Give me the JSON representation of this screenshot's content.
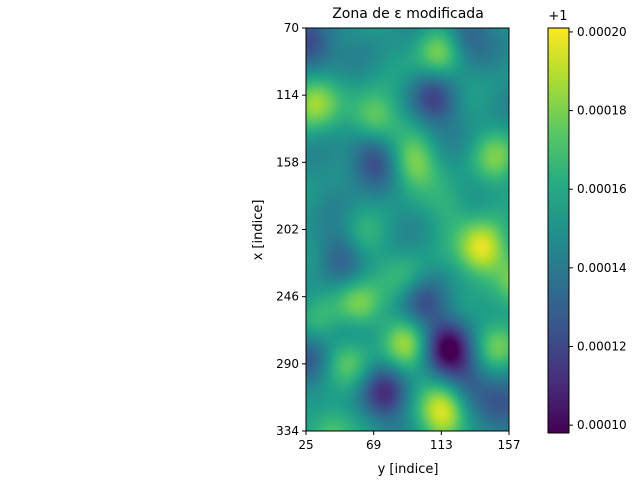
{
  "chart_data": {
    "type": "heatmap",
    "title": "Zona de ε modificada",
    "xlabel": "y [indice]",
    "ylabel": "x [indice]",
    "x_ticks": [
      25,
      69,
      113,
      157
    ],
    "y_ticks": [
      70,
      114,
      158,
      202,
      246,
      290,
      334
    ],
    "x_range": [
      25,
      157
    ],
    "y_range": [
      70,
      334
    ],
    "y_inverted": true,
    "colormap": "viridis",
    "colorbar": {
      "offset_label": "+1",
      "ticks": [
        "0.00010",
        "0.00012",
        "0.00014",
        "0.00016",
        "0.00018",
        "0.00020"
      ],
      "tick_values": [
        0.0001,
        0.00012,
        0.00014,
        0.00016,
        0.00018,
        0.0002
      ],
      "range": [
        9.8e-05,
        0.000201
      ]
    },
    "features": [
      {
        "x": 140,
        "y": 215,
        "value": 0.000201
      },
      {
        "x": 115,
        "y": 322,
        "value": 0.000199
      },
      {
        "x": 59,
        "y": 253,
        "value": 0.000186
      },
      {
        "x": 112,
        "y": 86,
        "value": 0.000184
      },
      {
        "x": 70,
        "y": 128,
        "value": 0.000183
      },
      {
        "x": 29,
        "y": 118,
        "value": 0.000188
      },
      {
        "x": 95,
        "y": 158,
        "value": 0.000182
      },
      {
        "x": 90,
        "y": 278,
        "value": 0.000183
      },
      {
        "x": 150,
        "y": 278,
        "value": 0.000179
      },
      {
        "x": 52,
        "y": 285,
        "value": 0.000178
      },
      {
        "x": 162,
        "y": 238,
        "value": 0.000174
      },
      {
        "x": 150,
        "y": 155,
        "value": 0.000176
      },
      {
        "x": 40,
        "y": 335,
        "value": 0.000175
      },
      {
        "x": 92,
        "y": 235,
        "value": 0.000168
      },
      {
        "x": 60,
        "y": 210,
        "value": 0.000166
      },
      {
        "x": 30,
        "y": 262,
        "value": 0.000166
      },
      {
        "x": 120,
        "y": 188,
        "value": 0.000164
      },
      {
        "x": 118,
        "y": 280,
        "value": 0.0001
      },
      {
        "x": 76,
        "y": 310,
        "value": 0.000115
      },
      {
        "x": 28,
        "y": 80,
        "value": 0.000118
      },
      {
        "x": 68,
        "y": 156,
        "value": 0.000118
      },
      {
        "x": 108,
        "y": 117,
        "value": 0.00012
      },
      {
        "x": 100,
        "y": 250,
        "value": 0.000122
      },
      {
        "x": 152,
        "y": 320,
        "value": 0.000124
      },
      {
        "x": 128,
        "y": 75,
        "value": 0.000125
      },
      {
        "x": 48,
        "y": 218,
        "value": 0.000127
      },
      {
        "x": 52,
        "y": 270,
        "value": 0.000128
      },
      {
        "x": 132,
        "y": 300,
        "value": 0.000128
      },
      {
        "x": 25,
        "y": 285,
        "value": 0.00013
      }
    ],
    "base_value": 0.00015
  }
}
